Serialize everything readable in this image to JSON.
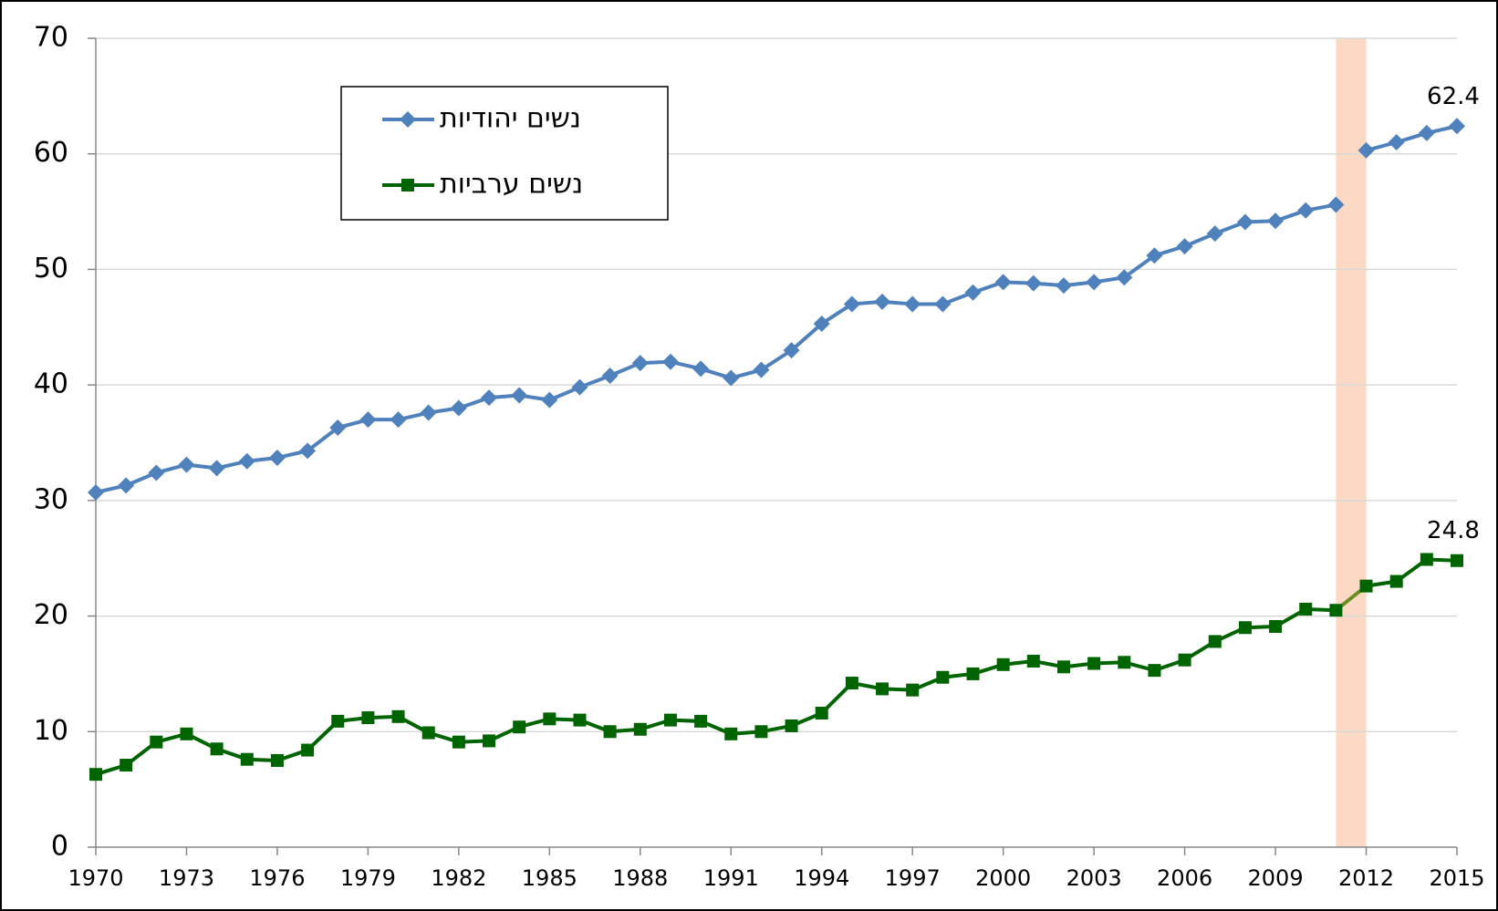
{
  "chart_data": {
    "type": "line",
    "x": [
      1970,
      1971,
      1972,
      1973,
      1974,
      1975,
      1976,
      1977,
      1978,
      1979,
      1980,
      1981,
      1982,
      1983,
      1984,
      1985,
      1986,
      1987,
      1988,
      1989,
      1990,
      1991,
      1992,
      1993,
      1994,
      1995,
      1996,
      1997,
      1998,
      1999,
      2000,
      2001,
      2002,
      2003,
      2004,
      2005,
      2006,
      2007,
      2008,
      2009,
      2010,
      2011,
      2012,
      2013,
      2014,
      2015
    ],
    "series": [
      {
        "name": "נשים יהודיות",
        "color": "#4f81bd",
        "marker": "diamond",
        "bridge_color": null,
        "values": [
          30.7,
          31.3,
          32.4,
          33.1,
          32.8,
          33.4,
          33.7,
          34.3,
          36.3,
          37.0,
          37.0,
          37.6,
          38.0,
          38.9,
          39.1,
          38.7,
          39.8,
          40.8,
          41.9,
          42.0,
          41.4,
          40.6,
          41.3,
          43.0,
          45.3,
          47.0,
          47.2,
          47.0,
          47.0,
          48.0,
          48.9,
          48.8,
          48.6,
          48.9,
          49.3,
          51.2,
          52.0,
          53.1,
          54.1,
          54.2,
          55.1,
          55.6,
          60.3,
          61.0,
          61.8,
          62.4
        ]
      },
      {
        "name": "נשים ערביות",
        "color": "#006400",
        "marker": "square",
        "bridge_color": "#6b8e23",
        "values": [
          6.3,
          7.1,
          9.1,
          9.8,
          8.5,
          7.6,
          7.5,
          8.4,
          10.9,
          11.2,
          11.3,
          9.9,
          9.1,
          9.2,
          10.4,
          11.1,
          11.0,
          10.0,
          10.2,
          11.0,
          10.9,
          9.8,
          10.0,
          10.5,
          11.6,
          14.2,
          13.7,
          13.6,
          14.7,
          15.0,
          15.8,
          16.1,
          15.6,
          15.9,
          16.0,
          15.3,
          16.2,
          17.8,
          19.0,
          19.1,
          20.6,
          20.5,
          22.6,
          23.0,
          24.9,
          24.8
        ]
      }
    ],
    "band": {
      "xlim": [
        2011,
        2012
      ],
      "color": "#fbd9c4"
    },
    "data_labels": "last",
    "xlim": [
      1970,
      2015
    ],
    "xticks": [
      1970,
      1973,
      1976,
      1979,
      1982,
      1985,
      1988,
      1991,
      1994,
      1997,
      2000,
      2003,
      2006,
      2009,
      2012,
      2015
    ],
    "ylim": [
      0,
      70
    ],
    "yticks": [
      0,
      10,
      20,
      30,
      40,
      50,
      60,
      70
    ],
    "grid": true,
    "legend": "upper left"
  }
}
